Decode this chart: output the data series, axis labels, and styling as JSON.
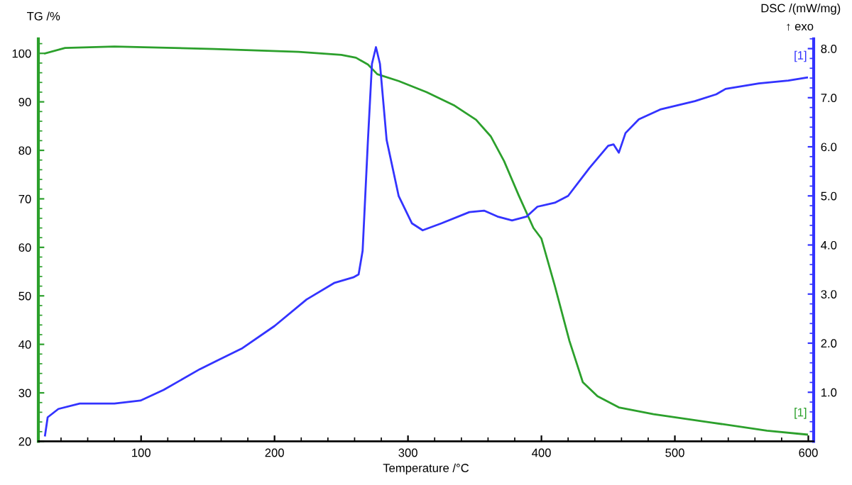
{
  "chart_data": {
    "type": "line",
    "xlabel": "Temperature /°C",
    "ylabel": "TG /%",
    "y2label": "DSC /(mW/mg)",
    "annotations": [
      "↑ exo",
      "[1]",
      "[1]"
    ],
    "xlim": [
      23,
      604
    ],
    "xticks": [
      100,
      200,
      300,
      400,
      500,
      600
    ],
    "ylim": [
      20,
      103
    ],
    "yticks": [
      20,
      30,
      40,
      50,
      60,
      70,
      80,
      90,
      100
    ],
    "y2lim": [
      0,
      8.2
    ],
    "y2ticks": [
      {
        "value": 1,
        "label": "1.0"
      },
      {
        "value": 2,
        "label": "2.0"
      },
      {
        "value": 3,
        "label": "3.0"
      },
      {
        "value": 4,
        "label": "4.0"
      },
      {
        "value": 5,
        "label": "5.0"
      },
      {
        "value": 6,
        "label": "6.0"
      },
      {
        "value": 7,
        "label": "7.0"
      },
      {
        "value": 8,
        "label": "8.0"
      }
    ],
    "grid": false,
    "legend": false,
    "marker": "none",
    "line_style": "solid",
    "series": [
      {
        "color": "#2ca02c",
        "x": [
          28,
          43,
          80,
          155,
          218,
          250,
          261,
          270,
          277,
          293,
          314,
          335,
          351,
          362,
          372,
          383,
          394,
          400,
          410,
          421,
          431,
          442,
          458,
          484,
          527,
          569,
          599
        ],
        "values": [
          100,
          101.1,
          101.4,
          100.9,
          100.3,
          99.7,
          99.1,
          97.7,
          95.7,
          94.3,
          92,
          89.2,
          86.3,
          82.9,
          77.8,
          70.7,
          64,
          61.8,
          52.1,
          40.7,
          32.2,
          29.3,
          27,
          25.6,
          23.9,
          22.2,
          21.4
        ]
      },
      {
        "color": "#3333ff",
        "axis": "y2",
        "x": [
          28,
          30,
          38,
          54,
          80,
          99.5,
          117,
          144,
          176,
          200,
          224,
          245,
          259,
          263,
          266,
          270,
          273,
          276,
          279,
          284,
          293,
          303,
          311,
          325,
          346,
          357,
          367,
          378,
          389,
          397,
          410,
          420,
          436,
          450,
          454,
          458,
          463,
          473,
          489,
          515,
          531,
          538,
          563,
          585,
          599
        ],
        "values": [
          0.12,
          0.49,
          0.66,
          0.77,
          0.77,
          0.83,
          1.05,
          1.47,
          1.9,
          2.35,
          2.89,
          3.23,
          3.34,
          3.4,
          3.88,
          6.14,
          7.69,
          8.03,
          7.69,
          6.14,
          5.0,
          4.44,
          4.3,
          4.44,
          4.67,
          4.7,
          4.58,
          4.5,
          4.58,
          4.78,
          4.86,
          5.0,
          5.57,
          6.02,
          6.05,
          5.88,
          6.28,
          6.56,
          6.76,
          6.93,
          7.07,
          7.18,
          7.29,
          7.35,
          7.41
        ]
      }
    ]
  }
}
